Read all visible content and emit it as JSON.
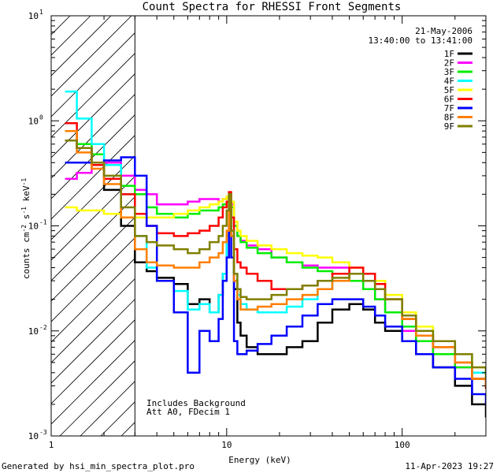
{
  "chart_data": {
    "type": "line",
    "title": "Count Spectra for RHESSI Front Segments",
    "xlabel": "Energy (keV)",
    "ylabel": "counts cm^-2 s^-1 keV^-1",
    "xscale": "log",
    "yscale": "log",
    "xlim": [
      1,
      300
    ],
    "ylim": [
      0.001,
      10
    ],
    "x_ticks": [
      {
        "value": 1,
        "label": "1"
      },
      {
        "value": 10,
        "label": "10"
      },
      {
        "value": 100,
        "label": "100"
      }
    ],
    "y_ticks": [
      {
        "value": 0.001,
        "mantissa": "10",
        "exponent": "-3"
      },
      {
        "value": 0.01,
        "mantissa": "10",
        "exponent": "-2"
      },
      {
        "value": 0.1,
        "mantissa": "10",
        "exponent": "-1"
      },
      {
        "value": 1,
        "mantissa": "10",
        "exponent": "0"
      },
      {
        "value": 10,
        "mantissa": "10",
        "exponent": "1"
      }
    ],
    "hatched_region": {
      "x_from": 1,
      "x_to": 3
    },
    "date": "21-May-2006",
    "time_range": "13:40:00 to 13:41:00",
    "annotations": [
      "Includes Background",
      "Att A0, FDecim 1"
    ],
    "series": [
      {
        "name": "1F",
        "color": "#000000"
      },
      {
        "name": "2F",
        "color": "#ff00ff"
      },
      {
        "name": "3F",
        "color": "#00ee00"
      },
      {
        "name": "4F",
        "color": "#00ffff"
      },
      {
        "name": "5F",
        "color": "#ffff00"
      },
      {
        "name": "6F",
        "color": "#ff0000"
      },
      {
        "name": "7F",
        "color": "#0000ff"
      },
      {
        "name": "8F",
        "color": "#ff7f00"
      },
      {
        "name": "9F",
        "color": "#7f7f00"
      }
    ],
    "profile_x": [
      1.2,
      1.4,
      1.7,
      2.0,
      2.5,
      3.0,
      3.5,
      4.0,
      5.0,
      6.0,
      7.0,
      8.0,
      9.0,
      9.5,
      10.0,
      10.3,
      10.6,
      11.0,
      11.5,
      12.0,
      13.0,
      15.0,
      18.0,
      22.0,
      27.0,
      33.0,
      40.0,
      50.0,
      60.0,
      70.0,
      80.0,
      100.0,
      120.0,
      150.0,
      200.0,
      250.0,
      300.0
    ],
    "profiles": {
      "1F": [
        0.65,
        0.55,
        0.38,
        0.22,
        0.1,
        0.045,
        0.037,
        0.032,
        0.028,
        0.018,
        0.02,
        0.015,
        0.022,
        0.035,
        0.08,
        0.18,
        0.08,
        0.025,
        0.012,
        0.009,
        0.007,
        0.006,
        0.006,
        0.007,
        0.008,
        0.012,
        0.016,
        0.018,
        0.016,
        0.012,
        0.01,
        0.008,
        0.006,
        0.0045,
        0.003,
        0.002,
        0.0015
      ],
      "2F": [
        0.28,
        0.32,
        0.38,
        0.4,
        0.3,
        0.22,
        0.2,
        0.16,
        0.16,
        0.17,
        0.18,
        0.18,
        0.17,
        0.18,
        0.19,
        0.2,
        0.16,
        0.1,
        0.08,
        0.072,
        0.065,
        0.06,
        0.05,
        0.045,
        0.042,
        0.04,
        0.04,
        0.03,
        0.025,
        0.02,
        0.015,
        0.01,
        0.008,
        0.006,
        0.0045,
        0.0035,
        0.003
      ],
      "3F": [
        0.8,
        0.6,
        0.48,
        0.38,
        0.24,
        0.2,
        0.15,
        0.13,
        0.12,
        0.13,
        0.14,
        0.14,
        0.15,
        0.16,
        0.17,
        0.19,
        0.15,
        0.1,
        0.08,
        0.07,
        0.062,
        0.055,
        0.05,
        0.045,
        0.04,
        0.037,
        0.035,
        0.03,
        0.025,
        0.02,
        0.015,
        0.011,
        0.008,
        0.006,
        0.0045,
        0.0035,
        0.0028
      ],
      "4F": [
        1.9,
        1.05,
        0.6,
        0.38,
        0.2,
        0.08,
        0.04,
        0.03,
        0.024,
        0.016,
        0.018,
        0.015,
        0.022,
        0.035,
        0.08,
        0.18,
        0.08,
        0.035,
        0.022,
        0.018,
        0.016,
        0.015,
        0.015,
        0.017,
        0.02,
        0.025,
        0.03,
        0.035,
        0.03,
        0.025,
        0.02,
        0.014,
        0.011,
        0.008,
        0.006,
        0.004,
        0.0035
      ],
      "5F": [
        0.15,
        0.14,
        0.14,
        0.13,
        0.12,
        0.12,
        0.12,
        0.12,
        0.13,
        0.14,
        0.15,
        0.16,
        0.17,
        0.18,
        0.19,
        0.2,
        0.17,
        0.11,
        0.09,
        0.08,
        0.072,
        0.065,
        0.06,
        0.055,
        0.052,
        0.05,
        0.045,
        0.04,
        0.035,
        0.03,
        0.022,
        0.015,
        0.011,
        0.008,
        0.006,
        0.0045,
        0.0035
      ],
      "6F": [
        0.95,
        0.55,
        0.38,
        0.28,
        0.2,
        0.13,
        0.1,
        0.085,
        0.08,
        0.085,
        0.09,
        0.1,
        0.12,
        0.15,
        0.17,
        0.21,
        0.12,
        0.06,
        0.045,
        0.04,
        0.035,
        0.03,
        0.025,
        0.025,
        0.027,
        0.03,
        0.035,
        0.04,
        0.035,
        0.028,
        0.02,
        0.013,
        0.009,
        0.007,
        0.005,
        0.0035,
        0.0028
      ],
      "7F": [
        0.4,
        0.4,
        0.4,
        0.42,
        0.45,
        0.3,
        0.1,
        0.03,
        0.015,
        0.004,
        0.01,
        0.008,
        0.013,
        0.03,
        0.05,
        0.1,
        0.05,
        0.008,
        0.006,
        0.006,
        0.0065,
        0.0075,
        0.009,
        0.011,
        0.014,
        0.018,
        0.02,
        0.02,
        0.017,
        0.014,
        0.011,
        0.008,
        0.006,
        0.0045,
        0.0035,
        0.0025,
        0.002
      ],
      "8F": [
        0.8,
        0.5,
        0.35,
        0.25,
        0.12,
        0.06,
        0.045,
        0.042,
        0.04,
        0.04,
        0.045,
        0.05,
        0.055,
        0.07,
        0.09,
        0.18,
        0.08,
        0.03,
        0.02,
        0.016,
        0.016,
        0.017,
        0.018,
        0.02,
        0.022,
        0.025,
        0.03,
        0.035,
        0.03,
        0.025,
        0.02,
        0.013,
        0.009,
        0.007,
        0.005,
        0.0035,
        0.003
      ],
      "9F": [
        0.65,
        0.55,
        0.4,
        0.3,
        0.15,
        0.08,
        0.07,
        0.065,
        0.06,
        0.055,
        0.06,
        0.07,
        0.08,
        0.1,
        0.14,
        0.2,
        0.09,
        0.035,
        0.025,
        0.021,
        0.02,
        0.02,
        0.022,
        0.025,
        0.027,
        0.03,
        0.032,
        0.035,
        0.03,
        0.025,
        0.02,
        0.014,
        0.01,
        0.008,
        0.006,
        0.0045,
        0.0035
      ]
    }
  },
  "footer": {
    "left": "Generated by hsi_min_spectra_plot.pro",
    "right": "11-Apr-2023 19:27"
  }
}
